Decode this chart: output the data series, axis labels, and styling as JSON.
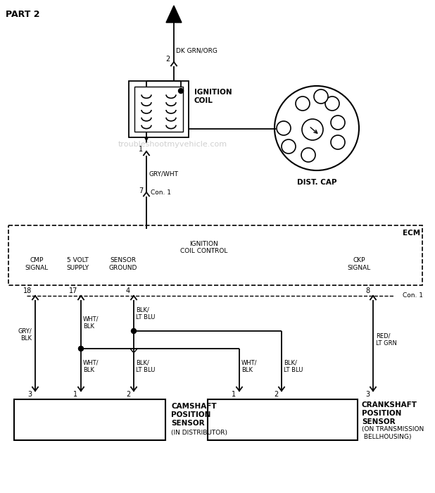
{
  "bg_color": "#ffffff",
  "title": "PART 2",
  "watermark": "troubleshootmyvehicle.com",
  "wire_dk_grn_org": "DK GRN/ORG",
  "wire_gry_wht": "GRY/WHT",
  "con1_label": "Con. 1",
  "pin2_label": "2",
  "pin1_label": "1",
  "pin7_label": "7",
  "ignition_coil_label": "IGNITION\nCOIL",
  "dist_cap_label": "DIST. CAP",
  "ecm_label": "ECM",
  "ignition_coil_control": "IGNITION\nCOIL CONTROL",
  "cmp_signal": "CMP\nSIGNAL",
  "volt_supply": "5 VOLT\nSUPPLY",
  "sensor_ground": "SENSOR\nGROUND",
  "ckp_signal": "CKP\nSIGNAL",
  "pin18": "18",
  "pin17": "17",
  "pin4": "4",
  "pin8": "8",
  "wire_gry_blk": "GRY/\nBLK",
  "wire_wht_blk_top": "WHT/\nBLK",
  "wire_blk_lt_blu_top": "BLK/\nLT BLU",
  "wire_red_lt_grn": "RED/\nLT GRN",
  "wire_wht_blk_bot1": "WHT/\nBLK",
  "wire_blk_lt_blu_bot1": "BLK/\nLT BLU",
  "wire_wht_blk_bot2": "WHT/\nBLK",
  "wire_blk_lt_blu_bot2": "BLK/\nLT BLU",
  "cam_sensor_label": "CAMSHAFT\nPOSITION\nSENSOR",
  "cam_sensor_sub": "(IN DISTRIBUTOR)",
  "crank_sensor_label": "CRANKSHAFT\nPOSITION\nSENSOR",
  "crank_sensor_sub": "(ON TRANSMISSION\n BELLHOUSING)"
}
